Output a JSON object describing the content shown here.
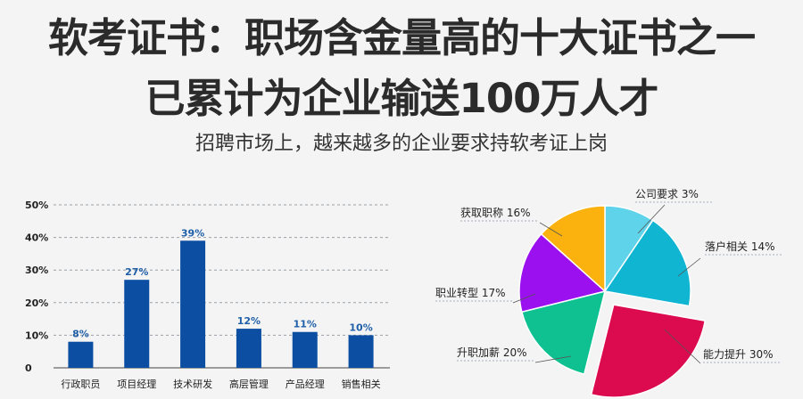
{
  "header": {
    "title_line1": "软考证书：职场含金量高的十大证书之一",
    "title_line2": "已累计为企业输送100万人才",
    "subtitle": "招聘市场上，越来越多的企业要求持软考证上岗"
  },
  "chart_data": [
    {
      "type": "bar",
      "categories": [
        "行政职员",
        "项目经理",
        "技术研发",
        "高层管理",
        "产品经理",
        "销售相关"
      ],
      "values": [
        8,
        27,
        39,
        12,
        11,
        10
      ],
      "value_labels": [
        "8%",
        "27%",
        "39%",
        "12%",
        "11%",
        "10%"
      ],
      "yticks": [
        "0",
        "10%",
        "20%",
        "30%",
        "40%",
        "50%"
      ],
      "ylim": [
        0,
        50
      ],
      "grid": "dashed horizontal",
      "bar_color": "#0b4ea2"
    },
    {
      "type": "pie",
      "slices": [
        {
          "label": "公司要求",
          "pct_label": "3%",
          "value": 3,
          "color": "#5fd3ea"
        },
        {
          "label": "落户相关",
          "pct_label": "14%",
          "value": 14,
          "color": "#10b5d2"
        },
        {
          "label": "能力提升",
          "pct_label": "30%",
          "value": 30,
          "color": "#dc0a4f"
        },
        {
          "label": "升职加薪",
          "pct_label": "20%",
          "value": 20,
          "color": "#0fc191"
        },
        {
          "label": "职业转型",
          "pct_label": "17%",
          "value": 17,
          "color": "#9a10ee"
        },
        {
          "label": "获取职称",
          "pct_label": "16%",
          "value": 16,
          "color": "#fbb20e"
        }
      ],
      "exploded": "能力提升"
    }
  ]
}
